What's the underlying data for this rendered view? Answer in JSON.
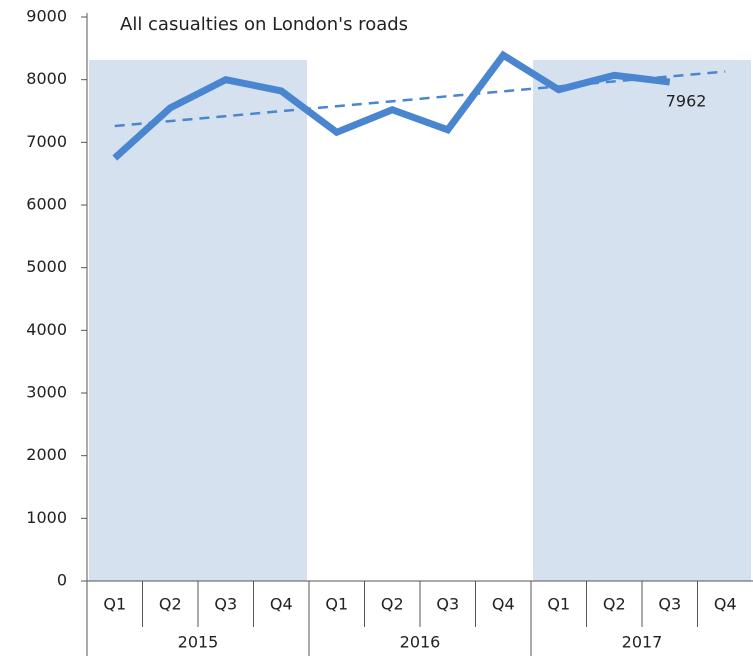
{
  "chart_data": {
    "type": "line",
    "title": "All casualties on London's roads",
    "categories": [
      "Q1",
      "Q2",
      "Q3",
      "Q4",
      "Q1",
      "Q2",
      "Q3",
      "Q4",
      "Q1",
      "Q2",
      "Q3",
      "Q4"
    ],
    "years": [
      "2015",
      "2016",
      "2017"
    ],
    "series": [
      {
        "name": "All casualties",
        "color": "#4a86d0",
        "values": [
          6750,
          7550,
          8000,
          7820,
          7160,
          7520,
          7200,
          8390,
          7840,
          8070,
          7962,
          null
        ]
      }
    ],
    "trendline": {
      "color": "#4a86d0",
      "values": [
        7260,
        8130
      ]
    },
    "labeled_point": 10,
    "shaded_years": [
      0,
      2
    ],
    "shade_color": "#d6e1ef",
    "ylim": [
      0,
      9000
    ],
    "yticks": [
      0,
      1000,
      2000,
      3000,
      4000,
      5000,
      6000,
      7000,
      8000,
      9000
    ],
    "grid": false
  }
}
